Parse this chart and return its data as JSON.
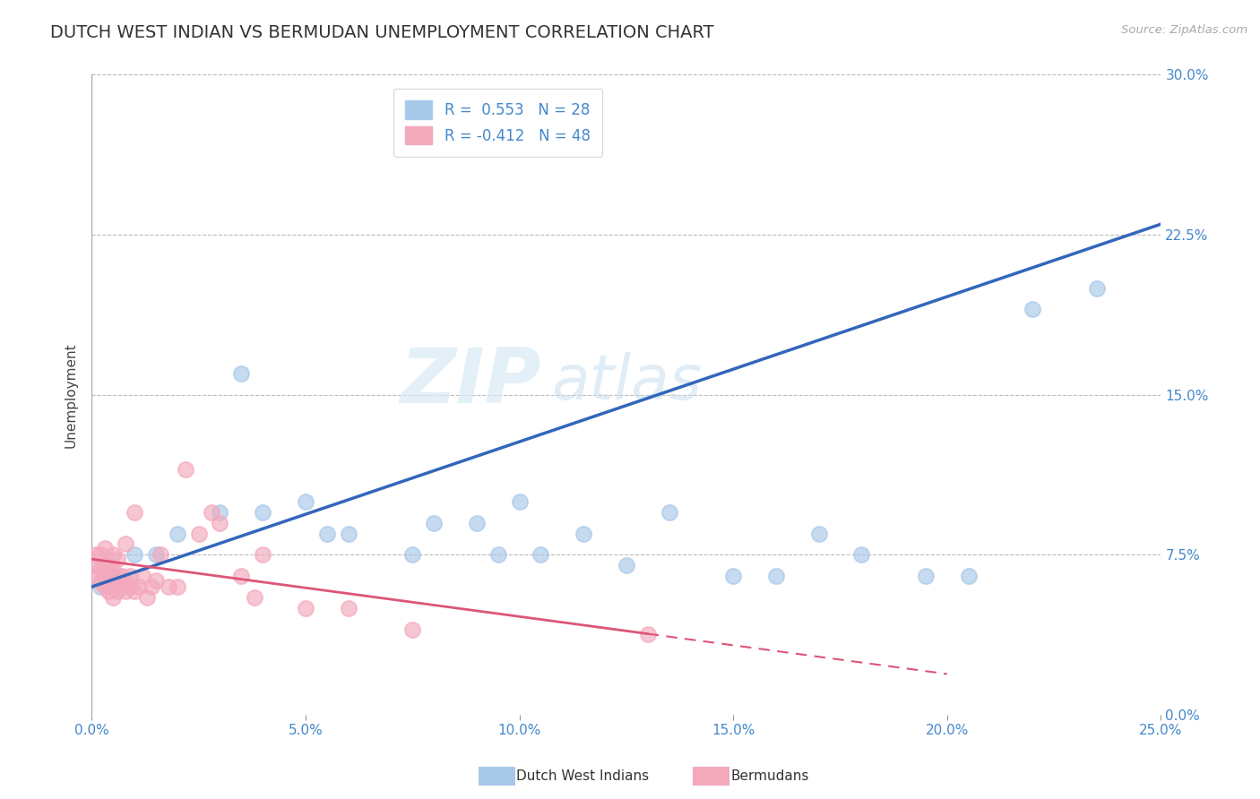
{
  "title": "DUTCH WEST INDIAN VS BERMUDAN UNEMPLOYMENT CORRELATION CHART",
  "source_text": "Source: ZipAtlas.com",
  "ylabel": "Unemployment",
  "xlim": [
    0.0,
    0.25
  ],
  "ylim": [
    0.0,
    0.3
  ],
  "xticks": [
    0.0,
    0.05,
    0.1,
    0.15,
    0.2,
    0.25
  ],
  "xtick_labels": [
    "0.0%",
    "5.0%",
    "10.0%",
    "15.0%",
    "20.0%",
    "25.0%"
  ],
  "yticks_right": [
    0.0,
    0.075,
    0.15,
    0.225,
    0.3
  ],
  "ytick_labels_right": [
    "0.0%",
    "7.5%",
    "15.0%",
    "22.5%",
    "30.0%"
  ],
  "r_blue": 0.553,
  "n_blue": 28,
  "r_pink": -0.412,
  "n_pink": 48,
  "blue_color": "#A8C8E8",
  "pink_color": "#F4A8BC",
  "blue_line_color": "#3366BB",
  "pink_line_color": "#DD5577",
  "legend_label_blue": "Dutch West Indians",
  "legend_label_pink": "Bermudans",
  "watermark_zip": "ZIP",
  "watermark_atlas": "atlas",
  "background_color": "#FFFFFF",
  "grid_color": "#BBBBBB",
  "title_color": "#333333",
  "axis_color": "#4488CC",
  "title_fontsize": 14,
  "label_fontsize": 11,
  "blue_scatter_x": [
    0.002,
    0.005,
    0.01,
    0.015,
    0.02,
    0.03,
    0.035,
    0.04,
    0.05,
    0.055,
    0.06,
    0.075,
    0.08,
    0.09,
    0.095,
    0.1,
    0.105,
    0.115,
    0.125,
    0.135,
    0.15,
    0.16,
    0.17,
    0.18,
    0.195,
    0.205,
    0.22,
    0.235
  ],
  "blue_scatter_y": [
    0.06,
    0.065,
    0.075,
    0.075,
    0.085,
    0.095,
    0.16,
    0.095,
    0.1,
    0.085,
    0.085,
    0.075,
    0.09,
    0.09,
    0.075,
    0.1,
    0.075,
    0.085,
    0.07,
    0.095,
    0.065,
    0.065,
    0.085,
    0.075,
    0.065,
    0.065,
    0.19,
    0.2
  ],
  "pink_scatter_x": [
    0.001,
    0.001,
    0.001,
    0.002,
    0.002,
    0.002,
    0.003,
    0.003,
    0.003,
    0.003,
    0.004,
    0.004,
    0.004,
    0.005,
    0.005,
    0.005,
    0.005,
    0.006,
    0.006,
    0.006,
    0.007,
    0.007,
    0.008,
    0.008,
    0.008,
    0.009,
    0.009,
    0.01,
    0.01,
    0.011,
    0.012,
    0.013,
    0.014,
    0.015,
    0.016,
    0.018,
    0.02,
    0.022,
    0.025,
    0.028,
    0.03,
    0.035,
    0.038,
    0.04,
    0.05,
    0.06,
    0.075,
    0.13
  ],
  "pink_scatter_y": [
    0.065,
    0.07,
    0.075,
    0.062,
    0.068,
    0.075,
    0.06,
    0.065,
    0.07,
    0.078,
    0.058,
    0.063,
    0.07,
    0.055,
    0.063,
    0.068,
    0.075,
    0.058,
    0.065,
    0.073,
    0.06,
    0.065,
    0.058,
    0.063,
    0.08,
    0.06,
    0.065,
    0.058,
    0.095,
    0.06,
    0.065,
    0.055,
    0.06,
    0.063,
    0.075,
    0.06,
    0.06,
    0.115,
    0.085,
    0.095,
    0.09,
    0.065,
    0.055,
    0.075,
    0.05,
    0.05,
    0.04,
    0.038
  ]
}
